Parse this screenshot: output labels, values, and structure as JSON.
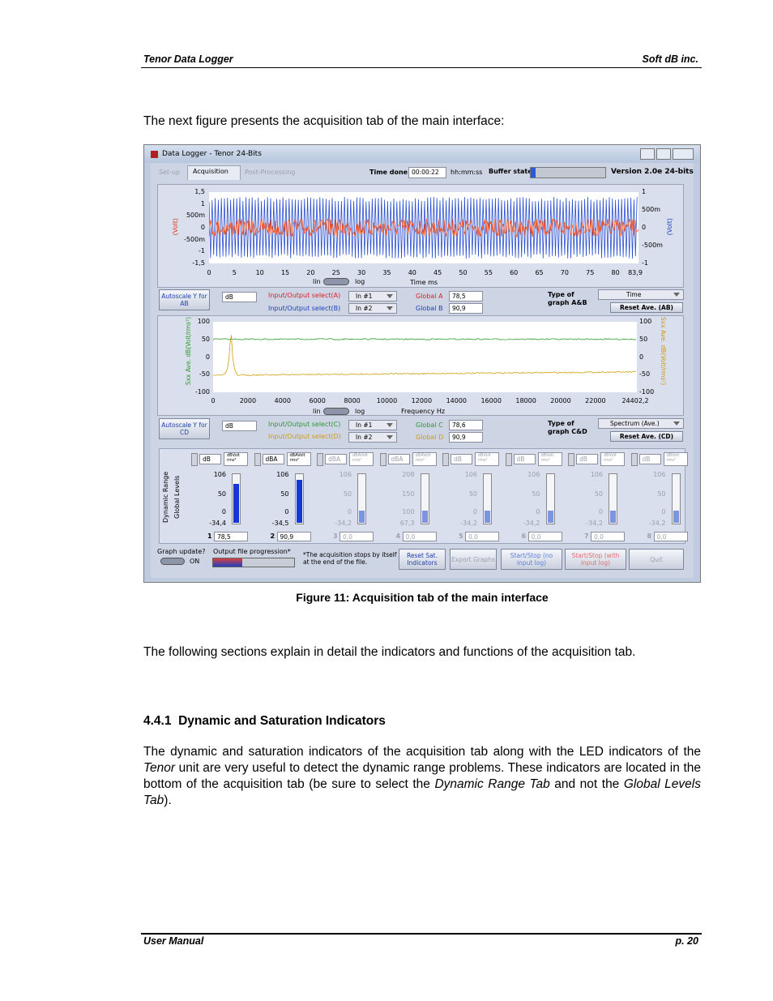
{
  "header": {
    "left": "Tenor Data Logger",
    "right": "Soft dB inc."
  },
  "intro": "The next figure presents the acquisition tab of the main interface:",
  "figure": {
    "window_title": "Data Logger - Tenor 24-Bits",
    "tabs": [
      "Set-up",
      "Acquisition",
      "Post-Processing"
    ],
    "time_done_label": "Time done",
    "time_done": "00:00:22",
    "time_format": "hh:mm:ss",
    "buffer_label": "Buffer state",
    "version": "Version 2.0e 24-bits",
    "graph_ab": {
      "y_label_left": "(Volt)",
      "y_label_right": "(Volt)",
      "yticks_left": [
        "1,5",
        "1",
        "500m",
        "0",
        "-500m",
        "-1",
        "-1,5"
      ],
      "yticks_right": [
        "1",
        "500m",
        "0",
        "-500m",
        "-1"
      ],
      "xticks": [
        "0",
        "5",
        "10",
        "15",
        "20",
        "25",
        "30",
        "35",
        "40",
        "45",
        "50",
        "55",
        "60",
        "65",
        "70",
        "75",
        "80",
        "83,9"
      ],
      "lin": "lin",
      "log": "log",
      "x_label": "Time ms"
    },
    "row_ab": {
      "autoscale": "Autoscale Y for AB",
      "unit": "dB",
      "select_a": "Input/Output select(A)",
      "in_a": "In #1",
      "select_b": "Input/Output select(B)",
      "in_b": "In #2",
      "global_a_label": "Global A",
      "global_a": "78,5",
      "global_b_label": "Global B",
      "global_b": "90,9",
      "type_label": "Type of graph A&B",
      "type": "Time",
      "reset": "Reset Ave. (AB)"
    },
    "graph_cd": {
      "y_label_left": "Sxx Ave. dB(Volt/rms²)",
      "y_label_right": "Sxx Ave. dB(Volt/rms²)",
      "yticks_left": [
        "100",
        "50",
        "0",
        "-50",
        "-100"
      ],
      "yticks_right": [
        "100",
        "50",
        "0",
        "-50",
        "-100"
      ],
      "xticks": [
        "0",
        "2000",
        "4000",
        "6000",
        "8000",
        "10000",
        "12000",
        "14000",
        "16000",
        "18000",
        "20000",
        "22000",
        "24402,2"
      ],
      "lin": "lin",
      "log": "log",
      "x_label": "Frequency Hz"
    },
    "row_cd": {
      "autoscale": "Autoscale Y for CD",
      "unit": "dB",
      "select_c": "Input/Output select(C)",
      "in_c": "In #1",
      "select_d": "Input/Output select(D)",
      "in_d": "In #2",
      "global_c_label": "Global C",
      "global_c": "78,6",
      "global_d_label": "Global D",
      "global_d": "90,9",
      "type_label": "Type of graph C&D",
      "type": "Spectrum (Ave.)",
      "reset": "Reset Ave. (CD)"
    },
    "side_tabs": [
      "Dynamic Range",
      "Global Levels"
    ],
    "channels": [
      {
        "unit": "dB",
        "unit2": "dBVolt rms²",
        "top": "106",
        "mid": "50",
        "zero": "0",
        "min": "-34,4",
        "number": "1",
        "value": "78,5"
      },
      {
        "unit": "dBA",
        "unit2": "dBAVolt rms²",
        "top": "106",
        "mid": "50",
        "zero": "0",
        "min": "-34,5",
        "number": "2",
        "value": "90,9"
      },
      {
        "unit": "dBA",
        "unit2": "dBAVolt rms²",
        "top": "106",
        "mid": "50",
        "zero": "0",
        "min": "-34,2",
        "number": "3",
        "value": "0,0"
      },
      {
        "unit": "dBA",
        "unit2": "dBAVolt rms²",
        "top": "208",
        "mid": "150",
        "zero": "100",
        "min": "67,3",
        "number": "4",
        "value": "0,0"
      },
      {
        "unit": "dB",
        "unit2": "dBVolt rms²",
        "top": "106",
        "mid": "50",
        "zero": "0",
        "min": "-34,2",
        "number": "5",
        "value": "0,0"
      },
      {
        "unit": "dB",
        "unit2": "dBVolt rms²",
        "top": "106",
        "mid": "50",
        "zero": "0",
        "min": "-34,2",
        "number": "6",
        "value": "0,0"
      },
      {
        "unit": "dB",
        "unit2": "dBVolt rms²",
        "top": "106",
        "mid": "50",
        "zero": "0",
        "min": "-34,2",
        "number": "7",
        "value": "0,0"
      },
      {
        "unit": "dB",
        "unit2": "dBVolt rms²",
        "top": "106",
        "mid": "50",
        "zero": "0",
        "min": "-34,2",
        "number": "8",
        "value": "0,0"
      }
    ],
    "bottom": {
      "graph_update": "Graph update?",
      "on": "ON",
      "progress_label": "Output file progression*",
      "note": "*The acquisition stops by itself at the end of the file.",
      "reset_sat": "Reset Sat. Indicators",
      "export": "Export Graphs",
      "start_no_log": "Start/Stop (no input log)",
      "start_log": "Start/Stop (with input log)",
      "quit": "Quit"
    },
    "caption": "Figure 11: Acquisition tab of the main interface"
  },
  "paragraph1": "The following sections explain in detail the indicators and functions of the acquisition tab.",
  "section": {
    "number": "4.4.1",
    "title": "Dynamic and Saturation Indicators"
  },
  "paragraph2": [
    "The dynamic and saturation indicators of the acquisition tab along with the LED indicators of the ",
    "Tenor",
    " unit are very useful to detect the dynamic range problems. These indicators are located in the bottom of the acquisition tab (be sure to select the ",
    "Dynamic Range Tab",
    " and not the ",
    "Global Levels Tab",
    ")."
  ],
  "footer": {
    "left": "User Manual",
    "right": "p. 20"
  }
}
